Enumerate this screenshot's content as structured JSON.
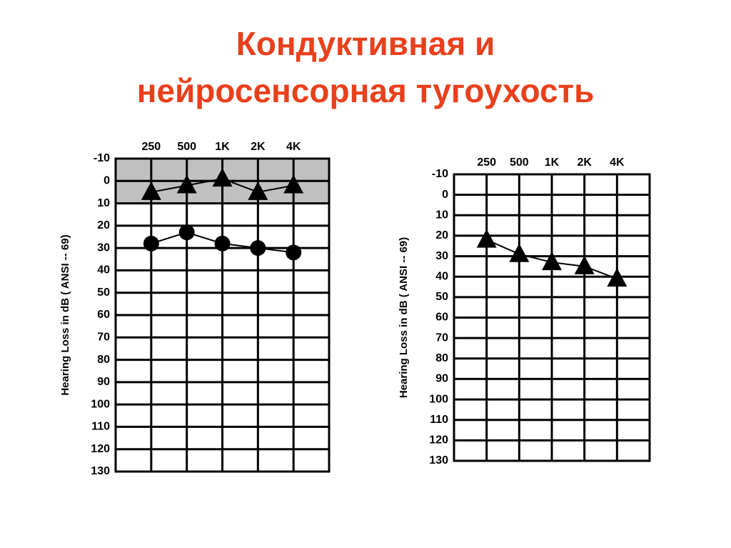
{
  "title": "Кондуктивная и нейросенсорная тугоухость",
  "chart_data": [
    {
      "type": "line",
      "y_label": "Hearing Loss in dB ( ANSI -- 69)",
      "categories": [
        "250",
        "500",
        "1K",
        "2K",
        "4K"
      ],
      "ylim": [
        -10,
        130
      ],
      "y_inverted": true,
      "yticks": [
        -10,
        0,
        10,
        20,
        30,
        40,
        50,
        60,
        70,
        80,
        90,
        100,
        110,
        120,
        130
      ],
      "grid": true,
      "shaded_range": [
        -10,
        10
      ],
      "shade_color": "#c0c0c0",
      "series": [
        {
          "color": "#000000",
          "marker": "triangle",
          "values": [
            5,
            2,
            -1,
            5,
            2
          ]
        },
        {
          "color": "#000000",
          "marker": "circle",
          "values": [
            28,
            23,
            28,
            30,
            32
          ]
        }
      ]
    },
    {
      "type": "line",
      "y_label": "Hearing Loss in dB ( ANSI -- 69)",
      "categories": [
        "250",
        "500",
        "1K",
        "2K",
        "4K"
      ],
      "ylim": [
        -10,
        130
      ],
      "y_inverted": true,
      "yticks": [
        -10,
        0,
        10,
        20,
        30,
        40,
        50,
        60,
        70,
        80,
        90,
        100,
        110,
        120,
        130
      ],
      "grid": true,
      "series": [
        {
          "color": "#000000",
          "marker": "triangle",
          "values": [
            22,
            29,
            33,
            35,
            41
          ]
        }
      ]
    }
  ]
}
